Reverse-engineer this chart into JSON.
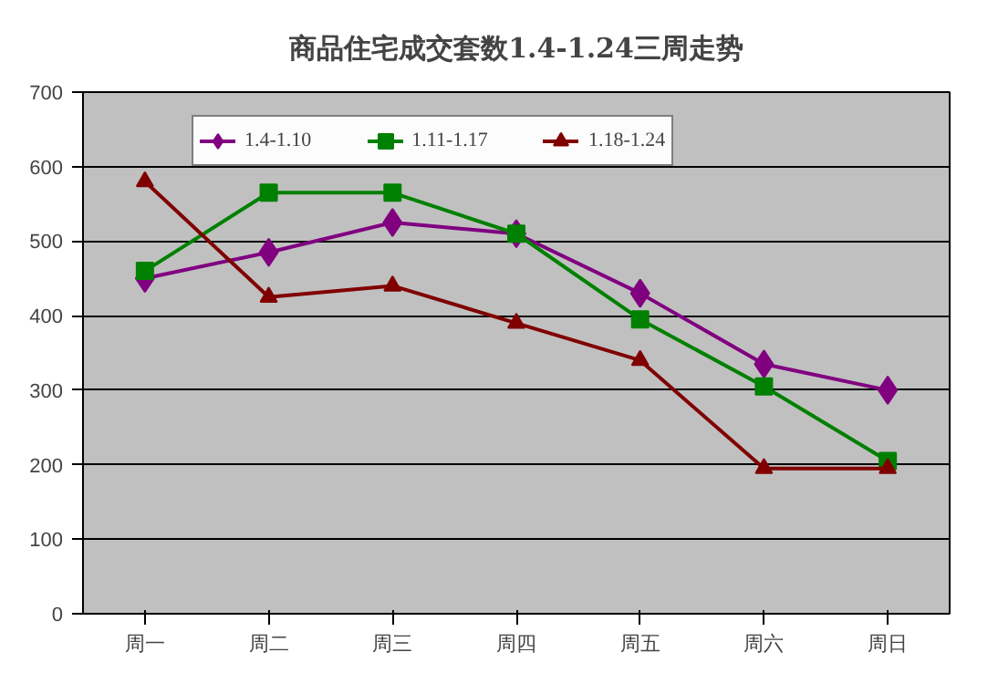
{
  "chart_data": {
    "type": "line",
    "title": "商品住宅成交套数1.4-1.24三周走势",
    "categories": [
      "周一",
      "周二",
      "周三",
      "周四",
      "周五",
      "周六",
      "周日"
    ],
    "series": [
      {
        "name": "1.4-1.10",
        "color": "#800080",
        "marker": "diamond",
        "values": [
          450,
          485,
          525,
          510,
          430,
          335,
          300
        ]
      },
      {
        "name": "1.11-1.17",
        "color": "#008000",
        "marker": "square",
        "values": [
          460,
          565,
          565,
          510,
          395,
          305,
          205
        ]
      },
      {
        "name": "1.18-1.24",
        "color": "#800000",
        "marker": "triangle",
        "values": [
          580,
          425,
          440,
          390,
          340,
          195,
          195
        ]
      }
    ],
    "ylim": [
      0,
      700
    ],
    "yticks": [
      0,
      100,
      200,
      300,
      400,
      500,
      600,
      700
    ],
    "grid": "y",
    "legend": "top",
    "line_style": "solid"
  }
}
